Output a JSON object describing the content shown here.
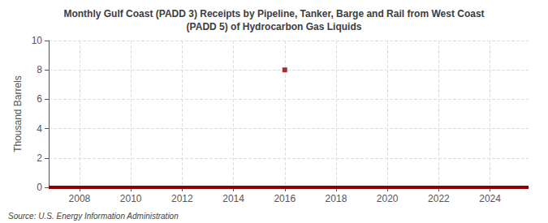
{
  "chart_data": {
    "type": "line",
    "title": "Monthly Gulf Coast (PADD 3) Receipts by Pipeline, Tanker, Barge and Rail from West Coast\n(PADD 5) of Hydrocarbon Gas Liquids",
    "ylabel": "Thousand Barrels",
    "annotation": "Source: U.S. Energy Information Administration",
    "series": [
      {
        "type": "line",
        "color": "#8b0000",
        "x": [
          2006.8,
          2025.5
        ],
        "values": [
          0,
          0
        ]
      },
      {
        "type": "scatter",
        "color": "#8b0000",
        "marker": "square",
        "x": [
          2016
        ],
        "values": [
          8
        ]
      }
    ],
    "xlim": [
      2006.8,
      2025.5
    ],
    "ylim": [
      0,
      10
    ],
    "xticks": [
      2008,
      2010,
      2012,
      2014,
      2016,
      2018,
      2020,
      2022,
      2024
    ],
    "yticks": [
      0,
      2,
      4,
      6,
      8,
      10
    ],
    "grid": true
  }
}
